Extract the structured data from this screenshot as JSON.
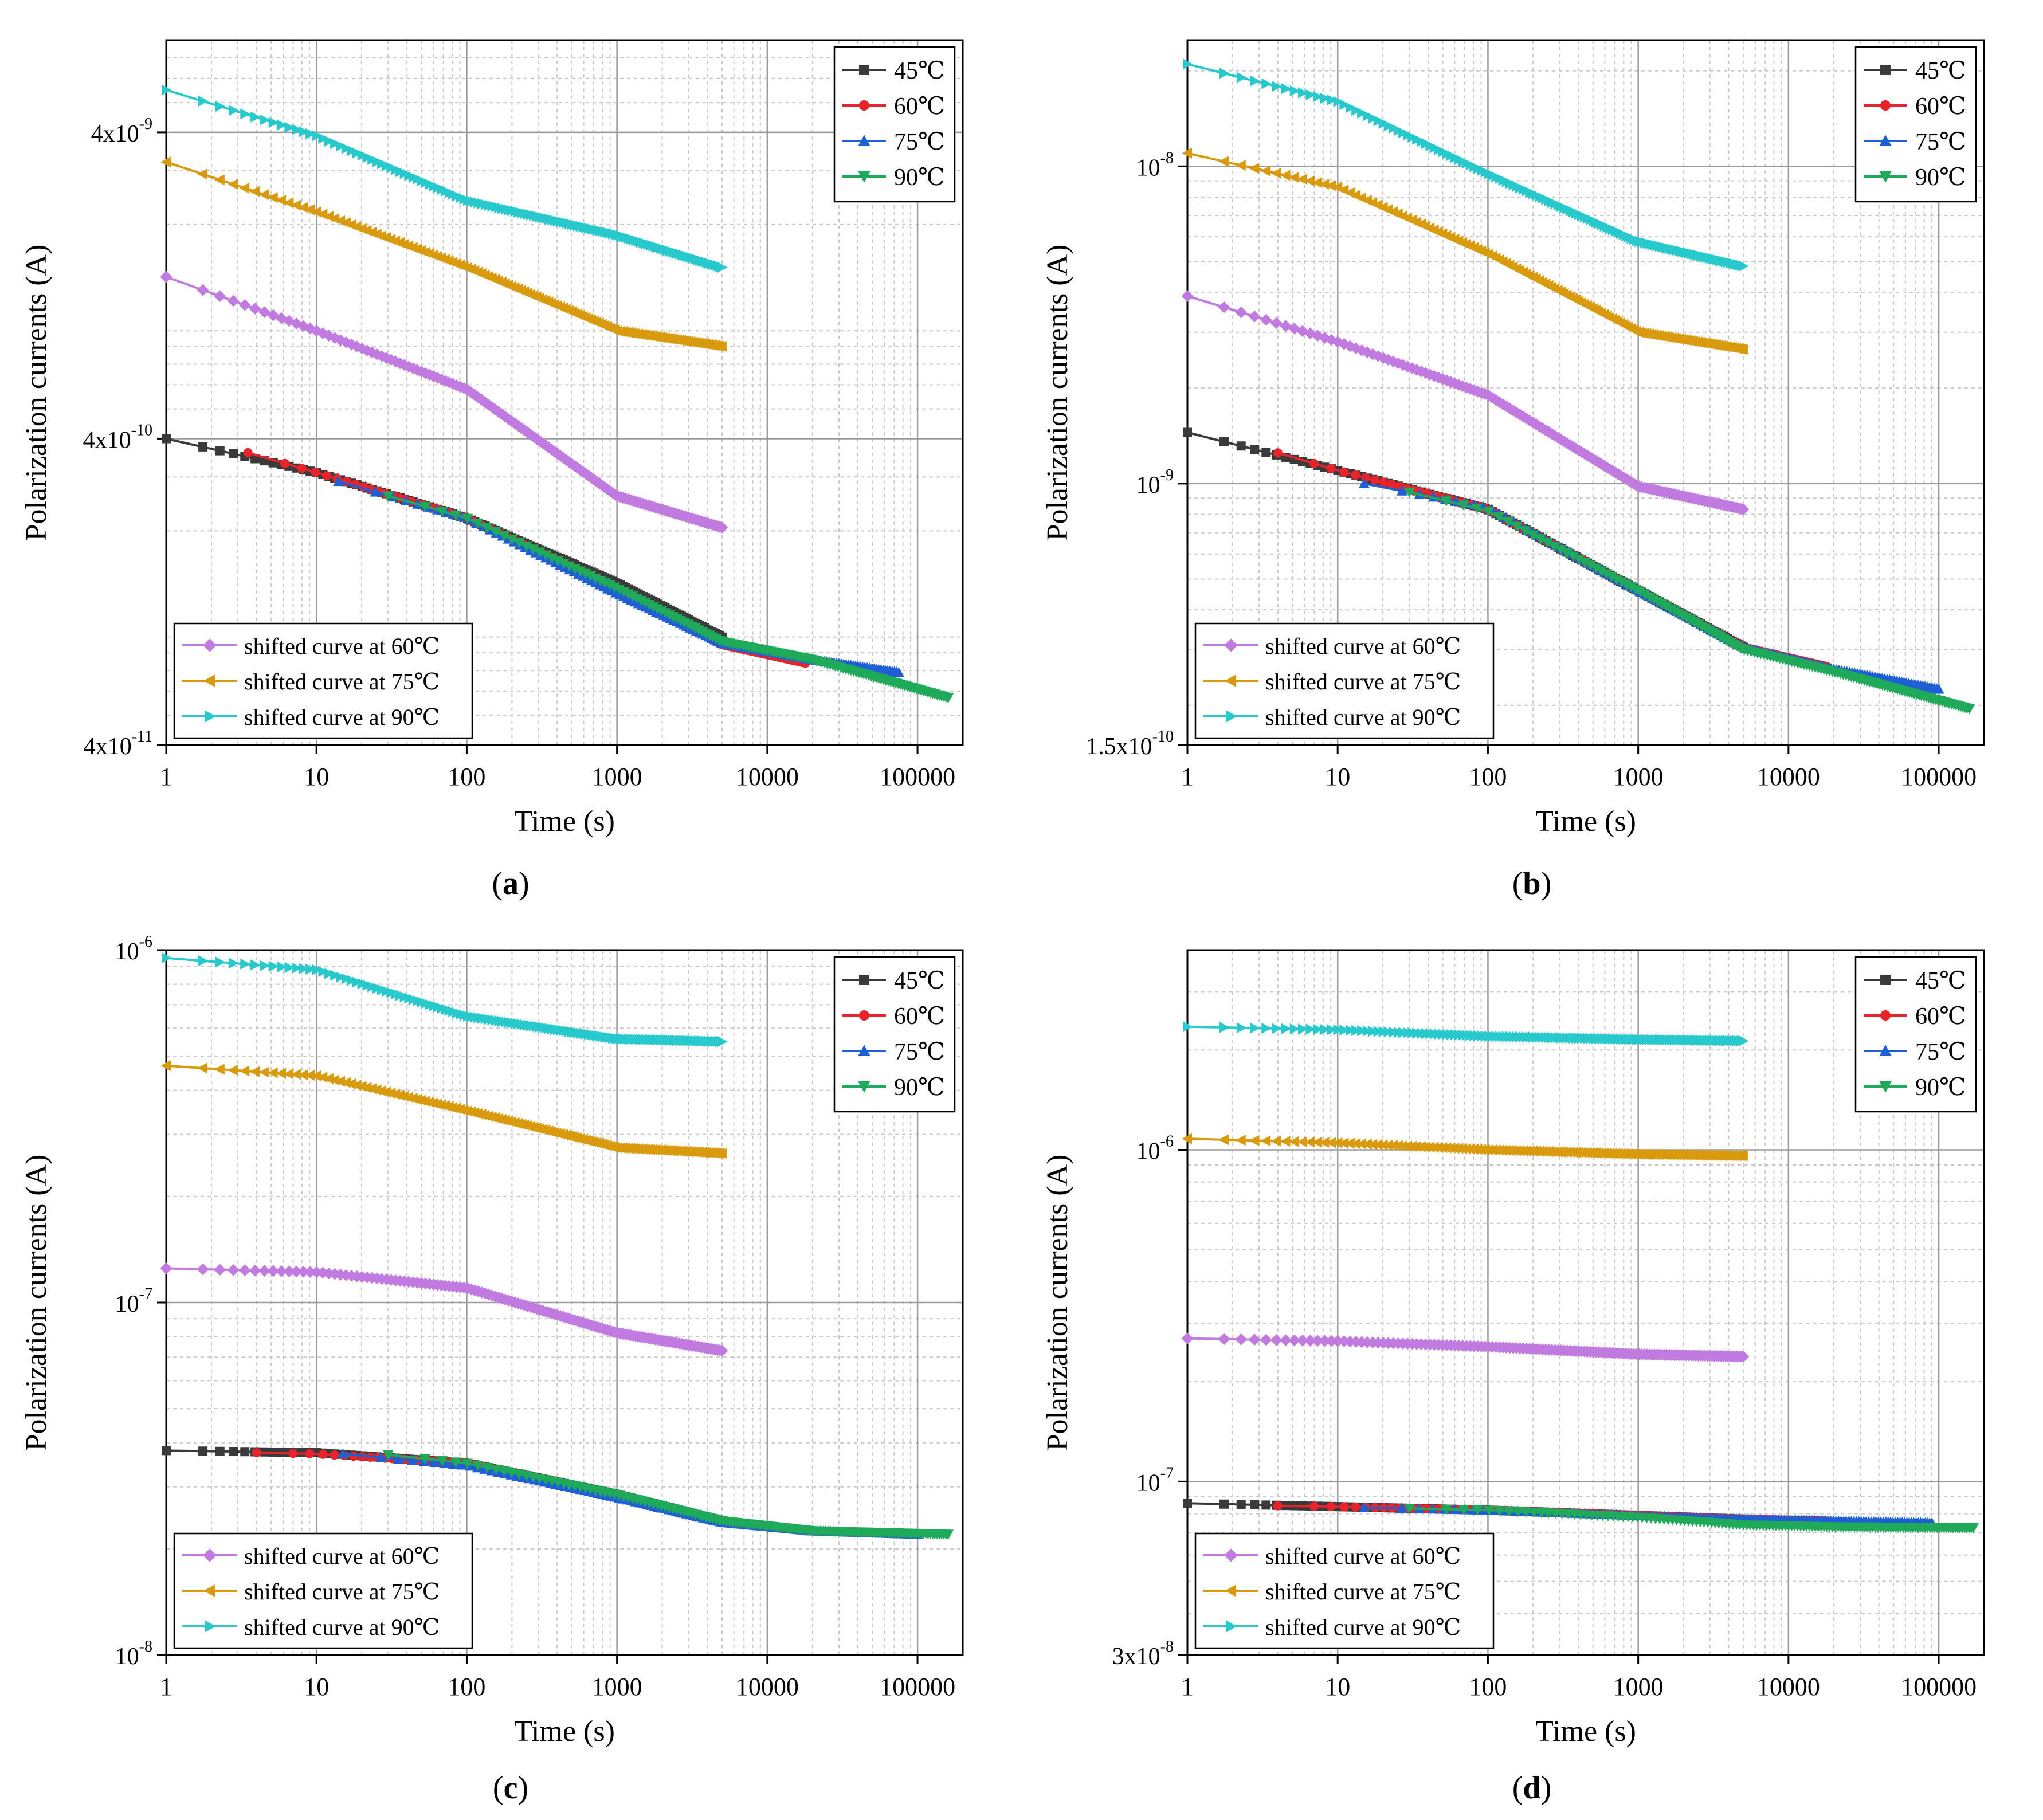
{
  "chart_data": [
    {
      "type": "line",
      "panel_label": "a",
      "xlabel": "Time (s)",
      "ylabel": "Polarization currents (A)",
      "xscale": "log",
      "yscale": "log",
      "xlim": [
        1,
        200000
      ],
      "ylim": [
        4e-11,
        8e-09
      ],
      "x_ticks": [
        1,
        10,
        100,
        1000,
        10000,
        100000
      ],
      "x_tick_labels": [
        "1",
        "10",
        "100",
        "1000",
        "10000",
        "100000"
      ],
      "y_ticks": [
        4e-11,
        4e-10,
        4e-09
      ],
      "y_tick_labels": [
        {
          "mantissa": "4x10",
          "exp": "-11"
        },
        {
          "mantissa": "4x10",
          "exp": "-10"
        },
        {
          "mantissa": "4x10",
          "exp": "-9"
        }
      ],
      "grid": true,
      "legend_top": [
        "45℃",
        "60℃",
        "75℃",
        "90℃"
      ],
      "legend_bottom": [
        "shifted curve at 60℃",
        "shifted curve at 75℃",
        "shifted curve at 90℃"
      ],
      "series": [
        {
          "name": "45℃",
          "color": "#3a3a3a",
          "marker": "square",
          "x": [
            1,
            10,
            100,
            1000,
            5000
          ],
          "y": [
            4e-10,
            3.1e-10,
            2.2e-10,
            1.35e-10,
            9e-11
          ]
        },
        {
          "name": "60℃",
          "color": "#e8232a",
          "marker": "circle",
          "x": [
            3.5,
            10,
            100,
            1000,
            5000,
            18000
          ],
          "y": [
            3.6e-10,
            3.1e-10,
            2.2e-10,
            1.3e-10,
            8.5e-11,
            7.4e-11
          ]
        },
        {
          "name": "75℃",
          "color": "#1f5fd6",
          "marker": "triangle-up",
          "x": [
            14,
            100,
            1000,
            5000,
            20000,
            75000
          ],
          "y": [
            2.9e-10,
            2.2e-10,
            1.25e-10,
            8.6e-11,
            7.6e-11,
            6.9e-11
          ]
        },
        {
          "name": "90℃",
          "color": "#1faa5a",
          "marker": "triangle-down",
          "x": [
            30,
            100,
            1000,
            5000,
            20000,
            160000
          ],
          "y": [
            2.6e-10,
            2.2e-10,
            1.3e-10,
            8.7e-11,
            7.6e-11,
            5.7e-11
          ]
        },
        {
          "name": "shifted curve at 60℃",
          "color": "#c07ae0",
          "marker": "diamond",
          "x": [
            1,
            10,
            100,
            1000,
            5000
          ],
          "y": [
            1.35e-09,
            9e-10,
            5.8e-10,
            2.6e-10,
            2.05e-10
          ]
        },
        {
          "name": "shifted curve at 75℃",
          "color": "#d99a0e",
          "marker": "triangle-left",
          "x": [
            1,
            10,
            100,
            1000,
            5000
          ],
          "y": [
            3.2e-09,
            2.2e-09,
            1.45e-09,
            9e-10,
            8e-10
          ]
        },
        {
          "name": "shifted curve at 90℃",
          "color": "#27c9cc",
          "marker": "triangle-right",
          "x": [
            1,
            10,
            100,
            1000,
            5000
          ],
          "y": [
            5.5e-09,
            3.9e-09,
            2.4e-09,
            1.85e-09,
            1.45e-09
          ]
        }
      ]
    },
    {
      "type": "line",
      "panel_label": "b",
      "xlabel": "Time (s)",
      "ylabel": "Polarization currents (A)",
      "xscale": "log",
      "yscale": "log",
      "xlim": [
        1,
        200000
      ],
      "ylim": [
        1.5e-10,
        2.5e-08
      ],
      "x_ticks": [
        1,
        10,
        100,
        1000,
        10000,
        100000
      ],
      "x_tick_labels": [
        "1",
        "10",
        "100",
        "1000",
        "10000",
        "100000"
      ],
      "y_ticks": [
        1.5e-10,
        1e-09,
        1e-08
      ],
      "y_tick_labels": [
        {
          "mantissa": "1.5x10",
          "exp": "-10"
        },
        {
          "mantissa": "10",
          "exp": "-9"
        },
        {
          "mantissa": "10",
          "exp": "-8"
        }
      ],
      "grid": true,
      "legend_top": [
        "45℃",
        "60℃",
        "75℃",
        "90℃"
      ],
      "legend_bottom": [
        "shifted curve at 60℃",
        "shifted curve at 75℃",
        "shifted curve at 90℃"
      ],
      "series": [
        {
          "name": "45℃",
          "color": "#3a3a3a",
          "marker": "square",
          "x": [
            1,
            10,
            100,
            1000,
            5000
          ],
          "y": [
            1.45e-09,
            1.1e-09,
            8.3e-10,
            4.6e-10,
            3.05e-10
          ]
        },
        {
          "name": "60℃",
          "color": "#e8232a",
          "marker": "circle",
          "x": [
            4,
            10,
            100,
            1000,
            5000,
            18000
          ],
          "y": [
            1.25e-09,
            1.1e-09,
            8.3e-10,
            4.6e-10,
            3.05e-10,
            2.65e-10
          ]
        },
        {
          "name": "75℃",
          "color": "#1f5fd6",
          "marker": "triangle-up",
          "x": [
            15,
            100,
            1000,
            5000,
            20000,
            100000
          ],
          "y": [
            1e-09,
            8.4e-10,
            4.6e-10,
            3.05e-10,
            2.6e-10,
            2.25e-10
          ]
        },
        {
          "name": "90℃",
          "color": "#1faa5a",
          "marker": "triangle-down",
          "x": [
            30,
            100,
            1000,
            5000,
            20000,
            160000
          ],
          "y": [
            9.4e-10,
            8.2e-10,
            4.6e-10,
            3e-10,
            2.55e-10,
            1.95e-10
          ]
        },
        {
          "name": "shifted curve at 60℃",
          "color": "#c07ae0",
          "marker": "diamond",
          "x": [
            1,
            10,
            100,
            1000,
            5000
          ],
          "y": [
            3.9e-09,
            2.8e-09,
            1.9e-09,
            9.8e-10,
            8.3e-10
          ]
        },
        {
          "name": "shifted curve at 75℃",
          "color": "#d99a0e",
          "marker": "triangle-left",
          "x": [
            1,
            10,
            100,
            1000,
            5000
          ],
          "y": [
            1.1e-08,
            8.6e-09,
            5.3e-09,
            3e-09,
            2.65e-09
          ]
        },
        {
          "name": "shifted curve at 90℃",
          "color": "#27c9cc",
          "marker": "triangle-right",
          "x": [
            1,
            10,
            100,
            1000,
            5000
          ],
          "y": [
            2.1e-08,
            1.6e-08,
            9.5e-09,
            5.8e-09,
            4.85e-09
          ]
        }
      ]
    },
    {
      "type": "line",
      "panel_label": "c",
      "xlabel": "Time (s)",
      "ylabel": "Polarization currents (A)",
      "xscale": "log",
      "yscale": "log",
      "xlim": [
        1,
        200000
      ],
      "ylim": [
        1e-08,
        1e-06
      ],
      "x_ticks": [
        1,
        10,
        100,
        1000,
        10000,
        100000
      ],
      "x_tick_labels": [
        "1",
        "10",
        "100",
        "1000",
        "10000",
        "100000"
      ],
      "y_ticks": [
        1e-08,
        1e-07,
        1e-06
      ],
      "y_tick_labels": [
        {
          "mantissa": "10",
          "exp": "-8"
        },
        {
          "mantissa": "10",
          "exp": "-7"
        },
        {
          "mantissa": "10",
          "exp": "-6"
        }
      ],
      "grid": true,
      "legend_top": [
        "45℃",
        "60℃",
        "75℃",
        "90℃"
      ],
      "legend_bottom": [
        "shifted curve at 60℃",
        "shifted curve at 75℃",
        "shifted curve at 90℃"
      ],
      "series": [
        {
          "name": "45℃",
          "color": "#3a3a3a",
          "marker": "square",
          "x": [
            1,
            10,
            100,
            1000,
            5000
          ],
          "y": [
            3.8e-08,
            3.75e-08,
            3.5e-08,
            2.85e-08,
            2.4e-08
          ]
        },
        {
          "name": "60℃",
          "color": "#e8232a",
          "marker": "circle",
          "x": [
            4,
            10,
            100,
            1000,
            5000,
            18000
          ],
          "y": [
            3.75e-08,
            3.72e-08,
            3.5e-08,
            2.85e-08,
            2.4e-08,
            2.25e-08
          ]
        },
        {
          "name": "75℃",
          "color": "#1f5fd6",
          "marker": "triangle-up",
          "x": [
            15,
            100,
            1000,
            5000,
            20000,
            100000
          ],
          "y": [
            3.72e-08,
            3.45e-08,
            2.8e-08,
            2.38e-08,
            2.25e-08,
            2.2e-08
          ]
        },
        {
          "name": "90℃",
          "color": "#1faa5a",
          "marker": "triangle-down",
          "x": [
            30,
            100,
            1000,
            5000,
            20000,
            160000
          ],
          "y": [
            3.7e-08,
            3.5e-08,
            2.85e-08,
            2.4e-08,
            2.25e-08,
            2.2e-08
          ]
        },
        {
          "name": "shifted curve at 60℃",
          "color": "#c07ae0",
          "marker": "diamond",
          "x": [
            1,
            10,
            100,
            1000,
            5000
          ],
          "y": [
            1.25e-07,
            1.22e-07,
            1.1e-07,
            8.2e-08,
            7.3e-08
          ]
        },
        {
          "name": "shifted curve at 75℃",
          "color": "#d99a0e",
          "marker": "triangle-left",
          "x": [
            1,
            10,
            100,
            1000,
            5000
          ],
          "y": [
            4.7e-07,
            4.4e-07,
            3.5e-07,
            2.75e-07,
            2.65e-07
          ]
        },
        {
          "name": "shifted curve at 90℃",
          "color": "#27c9cc",
          "marker": "triangle-right",
          "x": [
            1,
            10,
            100,
            1000,
            5000
          ],
          "y": [
            9.5e-07,
            8.8e-07,
            6.5e-07,
            5.6e-07,
            5.5e-07
          ]
        }
      ]
    },
    {
      "type": "line",
      "panel_label": "d",
      "xlabel": "Time (s)",
      "ylabel": "Polarization currents (A)",
      "xscale": "log",
      "yscale": "log",
      "xlim": [
        1,
        200000
      ],
      "ylim": [
        3e-08,
        4e-06
      ],
      "x_ticks": [
        1,
        10,
        100,
        1000,
        10000,
        100000
      ],
      "x_tick_labels": [
        "1",
        "10",
        "100",
        "1000",
        "10000",
        "100000"
      ],
      "y_ticks": [
        3e-08,
        1e-07,
        1e-06
      ],
      "y_tick_labels": [
        {
          "mantissa": "3x10",
          "exp": "-8"
        },
        {
          "mantissa": "10",
          "exp": "-7"
        },
        {
          "mantissa": "10",
          "exp": "-6"
        }
      ],
      "grid": true,
      "legend_top": [
        "45℃",
        "60℃",
        "75℃",
        "90℃"
      ],
      "legend_bottom": [
        "shifted curve at 60℃",
        "shifted curve at 75℃",
        "shifted curve at 90℃"
      ],
      "series": [
        {
          "name": "45℃",
          "color": "#3a3a3a",
          "marker": "square",
          "x": [
            1,
            10,
            100,
            1000,
            5000
          ],
          "y": [
            8.6e-08,
            8.4e-08,
            8.2e-08,
            7.9e-08,
            7.7e-08
          ]
        },
        {
          "name": "60℃",
          "color": "#e8232a",
          "marker": "circle",
          "x": [
            4,
            10,
            100,
            1000,
            5000,
            18000
          ],
          "y": [
            8.45e-08,
            8.4e-08,
            8.2e-08,
            7.9e-08,
            7.7e-08,
            7.6e-08
          ]
        },
        {
          "name": "75℃",
          "color": "#1f5fd6",
          "marker": "triangle-up",
          "x": [
            15,
            100,
            1000,
            5000,
            20000,
            90000
          ],
          "y": [
            8.35e-08,
            8.2e-08,
            7.9e-08,
            7.7e-08,
            7.6e-08,
            7.5e-08
          ]
        },
        {
          "name": "90℃",
          "color": "#1faa5a",
          "marker": "triangle-down",
          "x": [
            30,
            100,
            1000,
            5000,
            20000,
            170000
          ],
          "y": [
            8.3e-08,
            8.2e-08,
            7.8e-08,
            7.4e-08,
            7.3e-08,
            7.25e-08
          ]
        },
        {
          "name": "shifted curve at 60℃",
          "color": "#c07ae0",
          "marker": "diamond",
          "x": [
            1,
            10,
            100,
            1000,
            5000
          ],
          "y": [
            2.7e-07,
            2.65e-07,
            2.55e-07,
            2.42e-07,
            2.38e-07
          ]
        },
        {
          "name": "shifted curve at 75℃",
          "color": "#d99a0e",
          "marker": "triangle-left",
          "x": [
            1,
            10,
            100,
            1000,
            5000
          ],
          "y": [
            1.08e-06,
            1.05e-06,
            1e-06,
            9.7e-07,
            9.6e-07
          ]
        },
        {
          "name": "shifted curve at 90℃",
          "color": "#27c9cc",
          "marker": "triangle-right",
          "x": [
            1,
            10,
            100,
            1000,
            5000
          ],
          "y": [
            2.35e-06,
            2.3e-06,
            2.2e-06,
            2.15e-06,
            2.13e-06
          ]
        }
      ]
    }
  ]
}
